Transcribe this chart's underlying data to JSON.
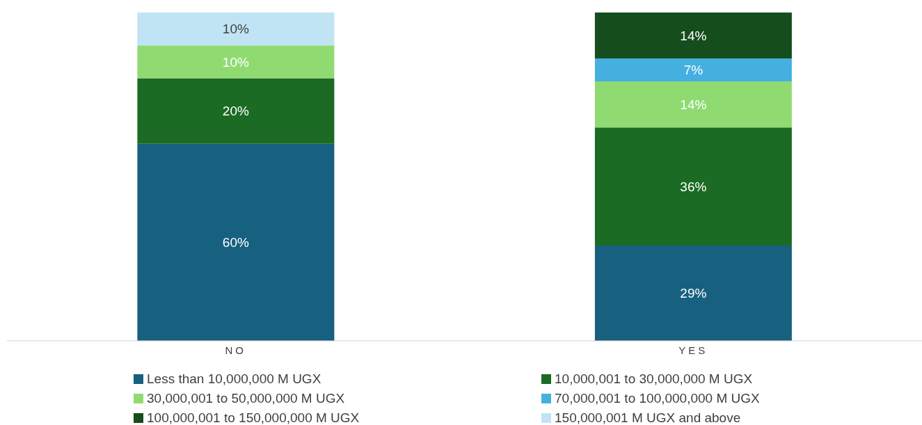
{
  "chart_data": {
    "type": "bar",
    "stacked": true,
    "categories": [
      "NO",
      "YES"
    ],
    "ylim": [
      0,
      100
    ],
    "tick_labels": "x",
    "legend": "bottom",
    "series": [
      {
        "name": "Less than 10,000,000 M UGX",
        "color": "#17607f",
        "values": [
          60,
          29
        ],
        "value_labels": [
          "60%",
          "29%"
        ]
      },
      {
        "name": "10,000,001 to 30,000,000 M UGX",
        "color": "#1b6b24",
        "values": [
          20,
          36
        ],
        "value_labels": [
          "20%",
          "36%"
        ]
      },
      {
        "name": "30,000,001 to 50,000,000 M UGX",
        "color": "#8fdb72",
        "values": [
          10,
          14
        ],
        "value_labels": [
          "10%",
          "14%"
        ]
      },
      {
        "name": "70,000,001 to 100,000,000 M UGX",
        "color": "#45b0e0",
        "values": [
          null,
          7
        ],
        "value_labels": [
          null,
          "7%"
        ]
      },
      {
        "name": "100,000,001 to 150,000,000 M UGX",
        "color": "#154d1c",
        "values": [
          null,
          14
        ],
        "value_labels": [
          null,
          "14%"
        ]
      },
      {
        "name": "150,000,001 M UGX and above",
        "color": "#c0e4f4",
        "values": [
          10,
          null
        ],
        "value_labels": [
          "10%",
          null
        ]
      }
    ]
  }
}
